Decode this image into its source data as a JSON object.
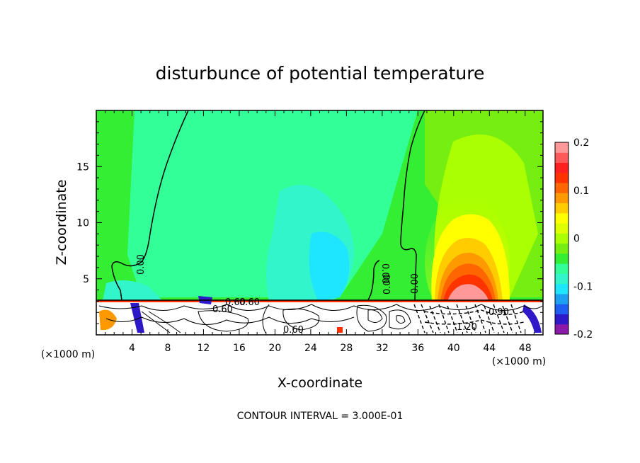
{
  "chart_data": {
    "type": "heatmap",
    "title": "disturbunce of potential temperature",
    "xlabel": "X-coordinate",
    "ylabel": "Z-coordinate",
    "x_unit": "(×1000 m)",
    "footer": "CONTOUR INTERVAL = 3.000E-01",
    "xlim": [
      0,
      50
    ],
    "ylim": [
      0,
      20
    ],
    "x_ticks": [
      "4",
      "8",
      "12",
      "16",
      "20",
      "24",
      "28",
      "32",
      "36",
      "40",
      "44",
      "48"
    ],
    "y_ticks": [
      "5",
      "10",
      "15"
    ],
    "colorbar": {
      "min": -0.2,
      "max": 0.2,
      "tick_labels": [
        "0.2",
        "0.1",
        "0",
        "-0.1",
        "-0.2"
      ],
      "colors": [
        "#8c1aa8",
        "#2d19c8",
        "#1e5ef0",
        "#1ea0f0",
        "#1ee6ff",
        "#33f5cc",
        "#33ff99",
        "#33ee33",
        "#77ee11",
        "#aaff00",
        "#ddff00",
        "#ffff00",
        "#ffcc00",
        "#ff9900",
        "#ff6600",
        "#ff3300",
        "#ff2020",
        "#ff5a5a",
        "#ff9999"
      ]
    },
    "contour_labels": [
      "0.00",
      "0.00",
      "0.00",
      "0.00",
      "0.60",
      "0.60",
      "0.60",
      "0.60",
      "0.90",
      "1.20"
    ],
    "fields": {
      "background_anomaly": 0.0,
      "cool_plume": {
        "x": 24,
        "z": 8,
        "value": -0.09
      },
      "warm_cell": {
        "x": 41,
        "z": 4,
        "value": 0.17
      },
      "warm_plume_top": {
        "x": 42,
        "z": 13,
        "value": 0.05
      },
      "turbulent_layer_top_z": 3.1
    },
    "grid": false
  }
}
